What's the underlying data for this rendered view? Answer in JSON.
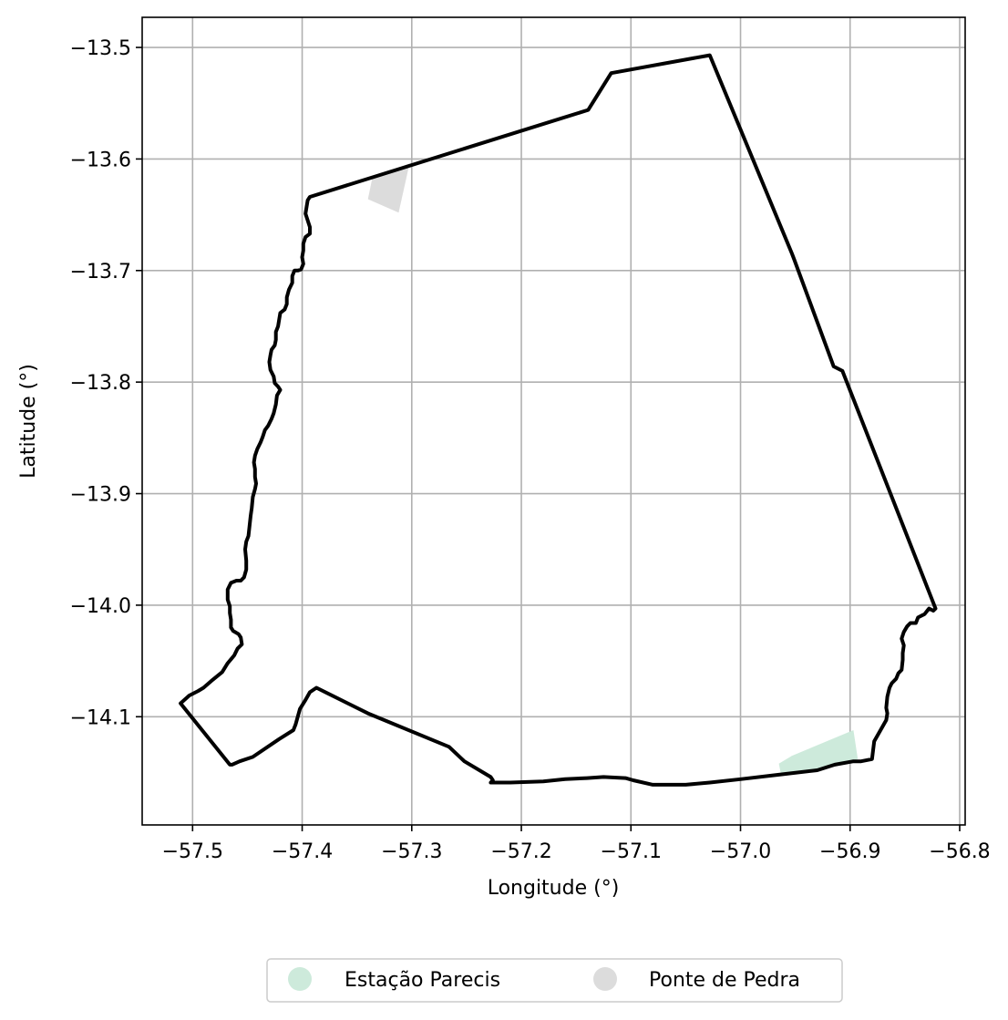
{
  "chart_data": {
    "type": "map",
    "xlabel": "Longitude (°)",
    "ylabel": "Latitude (°)",
    "xlim": [
      -57.546,
      -56.795
    ],
    "ylim": [
      -14.197,
      -13.473
    ],
    "grid": true,
    "x_ticks": [
      {
        "value": -57.5,
        "label": "−57.5"
      },
      {
        "value": -57.4,
        "label": "−57.4"
      },
      {
        "value": -57.3,
        "label": "−57.3"
      },
      {
        "value": -57.2,
        "label": "−57.2"
      },
      {
        "value": -57.1,
        "label": "−57.1"
      },
      {
        "value": -57.0,
        "label": "−57.0"
      },
      {
        "value": -56.9,
        "label": "−56.9"
      },
      {
        "value": -56.8,
        "label": "−56.8"
      }
    ],
    "y_ticks": [
      {
        "value": -13.5,
        "label": "−13.5"
      },
      {
        "value": -13.6,
        "label": "−13.6"
      },
      {
        "value": -13.7,
        "label": "−13.7"
      },
      {
        "value": -13.8,
        "label": "−13.8"
      },
      {
        "value": -13.9,
        "label": "−13.9"
      },
      {
        "value": -14.0,
        "label": "−14.0"
      },
      {
        "value": -14.1,
        "label": "−14.1"
      }
    ],
    "boundary": {
      "color": "#000000",
      "points": [
        [
          -57.393,
          -13.634
        ],
        [
          -57.139,
          -13.556
        ],
        [
          -57.118,
          -13.523
        ],
        [
          -57.028,
          -13.507
        ],
        [
          -56.953,
          -13.685
        ],
        [
          -56.951,
          -13.69
        ],
        [
          -56.915,
          -13.786
        ],
        [
          -56.907,
          -13.79
        ],
        [
          -56.822,
          -14.003
        ],
        [
          -56.824,
          -14.005
        ],
        [
          -56.828,
          -14.003
        ],
        [
          -56.832,
          -14.008
        ],
        [
          -56.838,
          -14.011
        ],
        [
          -56.84,
          -14.016
        ],
        [
          -56.845,
          -14.016
        ],
        [
          -56.848,
          -14.019
        ],
        [
          -56.851,
          -14.024
        ],
        [
          -56.853,
          -14.03
        ],
        [
          -56.851,
          -14.036
        ],
        [
          -56.852,
          -14.043
        ],
        [
          -56.852,
          -14.049
        ],
        [
          -56.853,
          -14.058
        ],
        [
          -56.856,
          -14.061
        ],
        [
          -56.858,
          -14.066
        ],
        [
          -56.862,
          -14.07
        ],
        [
          -56.864,
          -14.074
        ],
        [
          -56.866,
          -14.082
        ],
        [
          -56.867,
          -14.092
        ],
        [
          -56.866,
          -14.097
        ],
        [
          -56.867,
          -14.103
        ],
        [
          -56.878,
          -14.122
        ],
        [
          -56.88,
          -14.138
        ],
        [
          -56.89,
          -14.14
        ],
        [
          -56.897,
          -14.14
        ],
        [
          -56.914,
          -14.143
        ],
        [
          -56.93,
          -14.148
        ],
        [
          -56.965,
          -14.152
        ],
        [
          -57.0,
          -14.156
        ],
        [
          -57.028,
          -14.159
        ],
        [
          -57.05,
          -14.161
        ],
        [
          -57.08,
          -14.161
        ],
        [
          -57.098,
          -14.157
        ],
        [
          -57.105,
          -14.155
        ],
        [
          -57.125,
          -14.154
        ],
        [
          -57.14,
          -14.155
        ],
        [
          -57.16,
          -14.156
        ],
        [
          -57.18,
          -14.158
        ],
        [
          -57.21,
          -14.159
        ],
        [
          -57.228,
          -14.159
        ],
        [
          -57.226,
          -14.157
        ],
        [
          -57.228,
          -14.154
        ],
        [
          -57.252,
          -14.14
        ],
        [
          -57.266,
          -14.127
        ],
        [
          -57.34,
          -14.097
        ],
        [
          -57.387,
          -14.074
        ],
        [
          -57.393,
          -14.078
        ],
        [
          -57.397,
          -14.085
        ],
        [
          -57.402,
          -14.093
        ],
        [
          -57.404,
          -14.1
        ],
        [
          -57.406,
          -14.107
        ],
        [
          -57.408,
          -14.112
        ],
        [
          -57.421,
          -14.12
        ],
        [
          -57.445,
          -14.136
        ],
        [
          -57.457,
          -14.14
        ],
        [
          -57.464,
          -14.143
        ],
        [
          -57.466,
          -14.143
        ],
        [
          -57.511,
          -14.088
        ],
        [
          -57.503,
          -14.081
        ],
        [
          -57.495,
          -14.077
        ],
        [
          -57.49,
          -14.074
        ],
        [
          -57.483,
          -14.068
        ],
        [
          -57.478,
          -14.064
        ],
        [
          -57.473,
          -14.06
        ],
        [
          -57.468,
          -14.052
        ],
        [
          -57.462,
          -14.045
        ],
        [
          -57.459,
          -14.039
        ],
        [
          -57.455,
          -14.035
        ],
        [
          -57.456,
          -14.029
        ],
        [
          -57.458,
          -14.026
        ],
        [
          -57.463,
          -14.023
        ],
        [
          -57.465,
          -14.02
        ],
        [
          -57.465,
          -14.013
        ],
        [
          -57.466,
          -14.007
        ],
        [
          -57.466,
          -14.001
        ],
        [
          -57.468,
          -13.995
        ],
        [
          -57.468,
          -13.986
        ],
        [
          -57.465,
          -13.98
        ],
        [
          -57.46,
          -13.978
        ],
        [
          -57.456,
          -13.978
        ],
        [
          -57.453,
          -13.975
        ],
        [
          -57.451,
          -13.968
        ],
        [
          -57.451,
          -13.96
        ],
        [
          -57.452,
          -13.95
        ],
        [
          -57.451,
          -13.943
        ],
        [
          -57.449,
          -13.938
        ],
        [
          -57.448,
          -13.929
        ],
        [
          -57.447,
          -13.92
        ],
        [
          -57.446,
          -13.913
        ],
        [
          -57.445,
          -13.903
        ],
        [
          -57.443,
          -13.896
        ],
        [
          -57.442,
          -13.891
        ],
        [
          -57.443,
          -13.885
        ],
        [
          -57.443,
          -13.878
        ],
        [
          -57.444,
          -13.872
        ],
        [
          -57.443,
          -13.866
        ],
        [
          -57.441,
          -13.86
        ],
        [
          -57.438,
          -13.854
        ],
        [
          -57.436,
          -13.849
        ],
        [
          -57.434,
          -13.843
        ],
        [
          -57.431,
          -13.839
        ],
        [
          -57.428,
          -13.833
        ],
        [
          -57.426,
          -13.828
        ],
        [
          -57.424,
          -13.82
        ],
        [
          -57.423,
          -13.812
        ],
        [
          -57.42,
          -13.807
        ],
        [
          -57.422,
          -13.804
        ],
        [
          -57.425,
          -13.801
        ],
        [
          -57.426,
          -13.795
        ],
        [
          -57.429,
          -13.789
        ],
        [
          -57.43,
          -13.782
        ],
        [
          -57.429,
          -13.776
        ],
        [
          -57.428,
          -13.771
        ],
        [
          -57.425,
          -13.767
        ],
        [
          -57.424,
          -13.762
        ],
        [
          -57.424,
          -13.755
        ],
        [
          -57.422,
          -13.75
        ],
        [
          -57.421,
          -13.744
        ],
        [
          -57.42,
          -13.738
        ],
        [
          -57.416,
          -13.735
        ],
        [
          -57.414,
          -13.73
        ],
        [
          -57.414,
          -13.724
        ],
        [
          -57.412,
          -13.717
        ],
        [
          -57.409,
          -13.711
        ],
        [
          -57.409,
          -13.705
        ],
        [
          -57.407,
          -13.7
        ],
        [
          -57.404,
          -13.7
        ],
        [
          -57.401,
          -13.699
        ],
        [
          -57.399,
          -13.694
        ],
        [
          -57.4,
          -13.688
        ],
        [
          -57.399,
          -13.682
        ],
        [
          -57.399,
          -13.676
        ],
        [
          -57.397,
          -13.67
        ],
        [
          -57.393,
          -13.667
        ],
        [
          -57.393,
          -13.661
        ],
        [
          -57.395,
          -13.655
        ],
        [
          -57.397,
          -13.649
        ],
        [
          -57.396,
          -13.643
        ],
        [
          -57.395,
          -13.637
        ],
        [
          -57.393,
          -13.634
        ]
      ]
    },
    "regions": [
      {
        "name": "Estação Parecis",
        "color": "#cdeadb",
        "points": [
          [
            -56.965,
            -14.142
          ],
          [
            -56.953,
            -14.135
          ],
          [
            -56.897,
            -14.112
          ],
          [
            -56.893,
            -14.138
          ],
          [
            -56.915,
            -14.145
          ],
          [
            -56.963,
            -14.152
          ]
        ]
      },
      {
        "name": "Ponte de Pedra",
        "color": "#dcdcdc",
        "points": [
          [
            -57.34,
            -13.636
          ],
          [
            -57.336,
            -13.617
          ],
          [
            -57.302,
            -13.604
          ],
          [
            -57.312,
            -13.648
          ]
        ]
      }
    ],
    "legend": {
      "position": "bottom",
      "entries": [
        {
          "name": "Estação Parecis",
          "color": "#cdeadb"
        },
        {
          "name": "Ponte de Pedra",
          "color": "#dcdcdc"
        }
      ]
    }
  }
}
